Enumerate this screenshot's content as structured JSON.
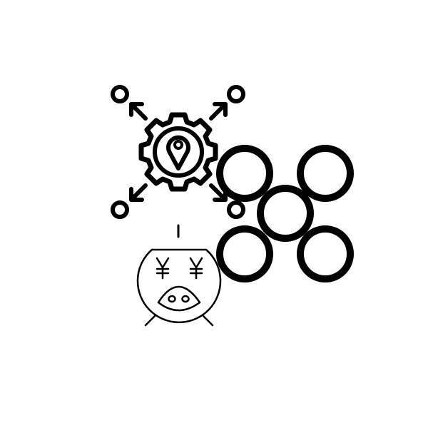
{
  "canvas": {
    "background": "#ffffff",
    "ink": "#000000"
  },
  "icons": {
    "gear_location": {
      "name": "gear-location-icon",
      "arrows": [
        "arrow-up-left",
        "arrow-up-right",
        "arrow-down-left",
        "arrow-down-right"
      ]
    },
    "rings": {
      "name": "five-rings-icon",
      "count": 5
    },
    "piggy_bank": {
      "name": "piggy-bank-icon",
      "currency_symbol_left": "¥",
      "currency_symbol_right": "¥"
    }
  }
}
